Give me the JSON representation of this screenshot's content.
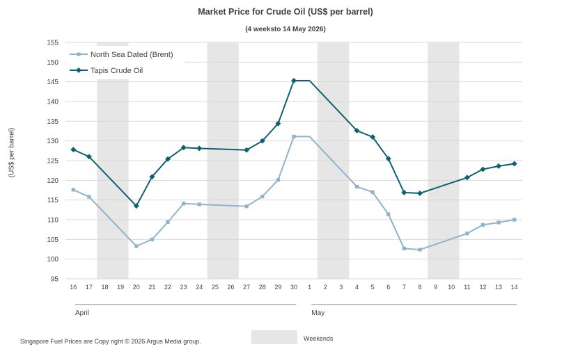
{
  "title": "Market Price for Crude  Oil (US$ per barrel)",
  "subtitle": "(4 weeksto 14 May 2026)",
  "footer": "Singapore  Fuel Prices are  Copy right © 2026 Argus Media group.",
  "weekend_legend_label": "Weekends",
  "chart_data": {
    "type": "line",
    "ylabel": "(US$ per barrel)",
    "ylim": [
      95,
      155
    ],
    "yticks": [
      95,
      100,
      105,
      110,
      115,
      120,
      125,
      130,
      135,
      140,
      145,
      150,
      155
    ],
    "categories": [
      "16",
      "17",
      "18",
      "19",
      "20",
      "21",
      "22",
      "23",
      "24",
      "25",
      "26",
      "27",
      "28",
      "29",
      "30",
      "1",
      "2",
      "3",
      "4",
      "5",
      "6",
      "7",
      "8",
      "9",
      "10",
      "11",
      "12",
      "13",
      "14"
    ],
    "month_groups": [
      {
        "label": "April",
        "from": "16",
        "to": "30"
      },
      {
        "label": "May",
        "from": "1",
        "to": "14"
      }
    ],
    "weekends": [
      [
        "18",
        "19"
      ],
      [
        "25",
        "26"
      ],
      [
        "2",
        "3"
      ],
      [
        "9",
        "10"
      ]
    ],
    "grid": true,
    "legend_position": "top-left",
    "series": [
      {
        "name": "North Sea Dated (Brent)",
        "color": "#8db4cc",
        "marker": "square",
        "values": [
          117.6,
          115.8,
          null,
          null,
          103.3,
          105.0,
          109.4,
          114.1,
          113.9,
          null,
          null,
          113.4,
          115.9,
          120.1,
          131.1,
          131.1,
          null,
          null,
          118.4,
          117.0,
          111.4,
          102.7,
          102.4,
          null,
          null,
          106.5,
          108.7,
          109.3,
          110.0
        ],
        "markers": [
          true,
          true,
          false,
          false,
          true,
          true,
          true,
          true,
          true,
          false,
          false,
          true,
          true,
          true,
          true,
          false,
          false,
          false,
          true,
          true,
          true,
          true,
          true,
          false,
          false,
          true,
          true,
          true,
          true
        ]
      },
      {
        "name": "Tapis Crude Oil",
        "color": "#0e6170",
        "marker": "diamond",
        "values": [
          127.8,
          126.0,
          null,
          null,
          113.5,
          120.9,
          125.4,
          128.3,
          128.1,
          null,
          null,
          127.7,
          130.0,
          134.4,
          145.3,
          145.3,
          null,
          null,
          132.6,
          131.0,
          125.5,
          116.9,
          116.7,
          null,
          null,
          120.7,
          122.8,
          123.6,
          124.2
        ],
        "markers": [
          true,
          true,
          false,
          false,
          true,
          true,
          true,
          true,
          true,
          false,
          false,
          true,
          true,
          true,
          true,
          false,
          false,
          false,
          true,
          true,
          true,
          true,
          true,
          false,
          false,
          true,
          true,
          true,
          true
        ]
      }
    ]
  }
}
